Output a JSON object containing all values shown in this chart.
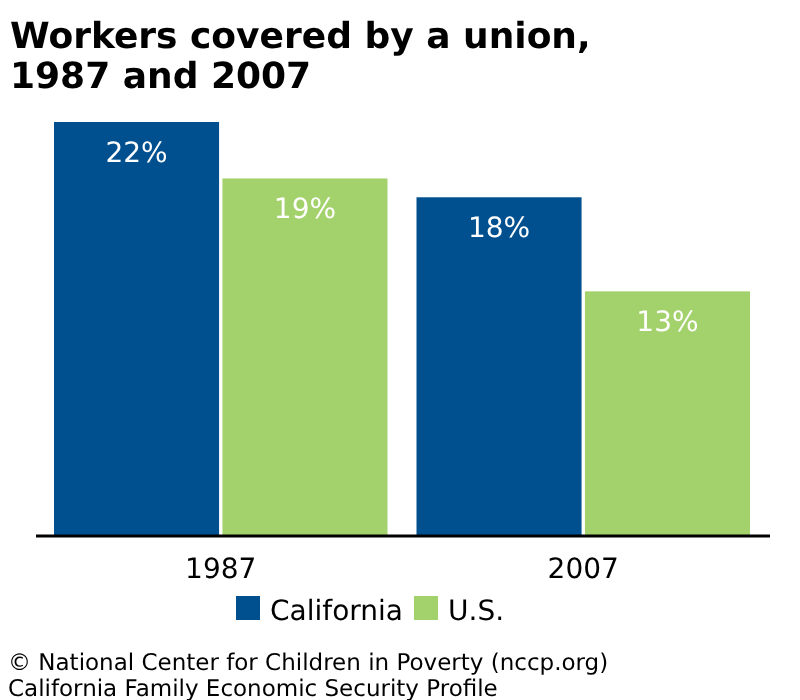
{
  "chart_data": {
    "type": "bar",
    "title": "Workers covered by a union, 1987 and 2007",
    "categories": [
      "1987",
      "2007"
    ],
    "series": [
      {
        "name": "California",
        "color": "#00508f",
        "values": [
          22,
          18
        ],
        "value_labels": [
          "22%",
          "18%"
        ]
      },
      {
        "name": "U.S.",
        "color": "#a3d16b",
        "values": [
          19,
          13
        ],
        "value_labels": [
          "19%",
          "13%"
        ]
      }
    ],
    "legend": "bottom",
    "annotations": [
      "© National Center for Children in Poverty (nccp.org)",
      "California Family Economic Security Profile"
    ]
  }
}
